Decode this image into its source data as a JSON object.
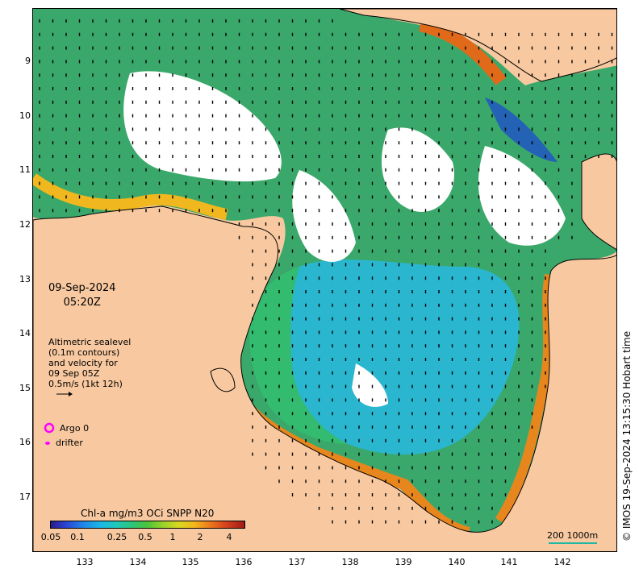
{
  "map": {
    "lat_ticks": [
      "9",
      "10",
      "11",
      "12",
      "13",
      "14",
      "15",
      "16",
      "17"
    ],
    "lon_ticks": [
      "133",
      "134",
      "135",
      "136",
      "137",
      "138",
      "139",
      "140",
      "141",
      "142"
    ],
    "colors": {
      "land": "#f8c9a0",
      "cloud": "#ffffff",
      "coast": "#000000",
      "vector": "#000000"
    }
  },
  "date": {
    "day": "09-Sep-2024",
    "time": "05:20Z"
  },
  "sealevel": {
    "line1": "Altimetric sealevel",
    "line2": "(0.1m contours)",
    "line3": "and velocity for",
    "line4": "09 Sep 05Z",
    "line5": "0.5m/s (1kt 12h)"
  },
  "legend": {
    "argo": "Argo 0",
    "drifter": "drifter",
    "argo_color": "#ff00ff",
    "drifter_color": "#ff00ff"
  },
  "colorbar": {
    "title": "Chl-a mg/m3 OCi SNPP N20",
    "ticks": [
      "0.05",
      "0.1",
      "0.25",
      "0.5",
      "1",
      "2",
      "4"
    ]
  },
  "scale": {
    "label": "200 1000m",
    "color": "#20b8a0"
  },
  "credit": "© IMOS 19-Sep-2024 13:15:30 Hobart time"
}
